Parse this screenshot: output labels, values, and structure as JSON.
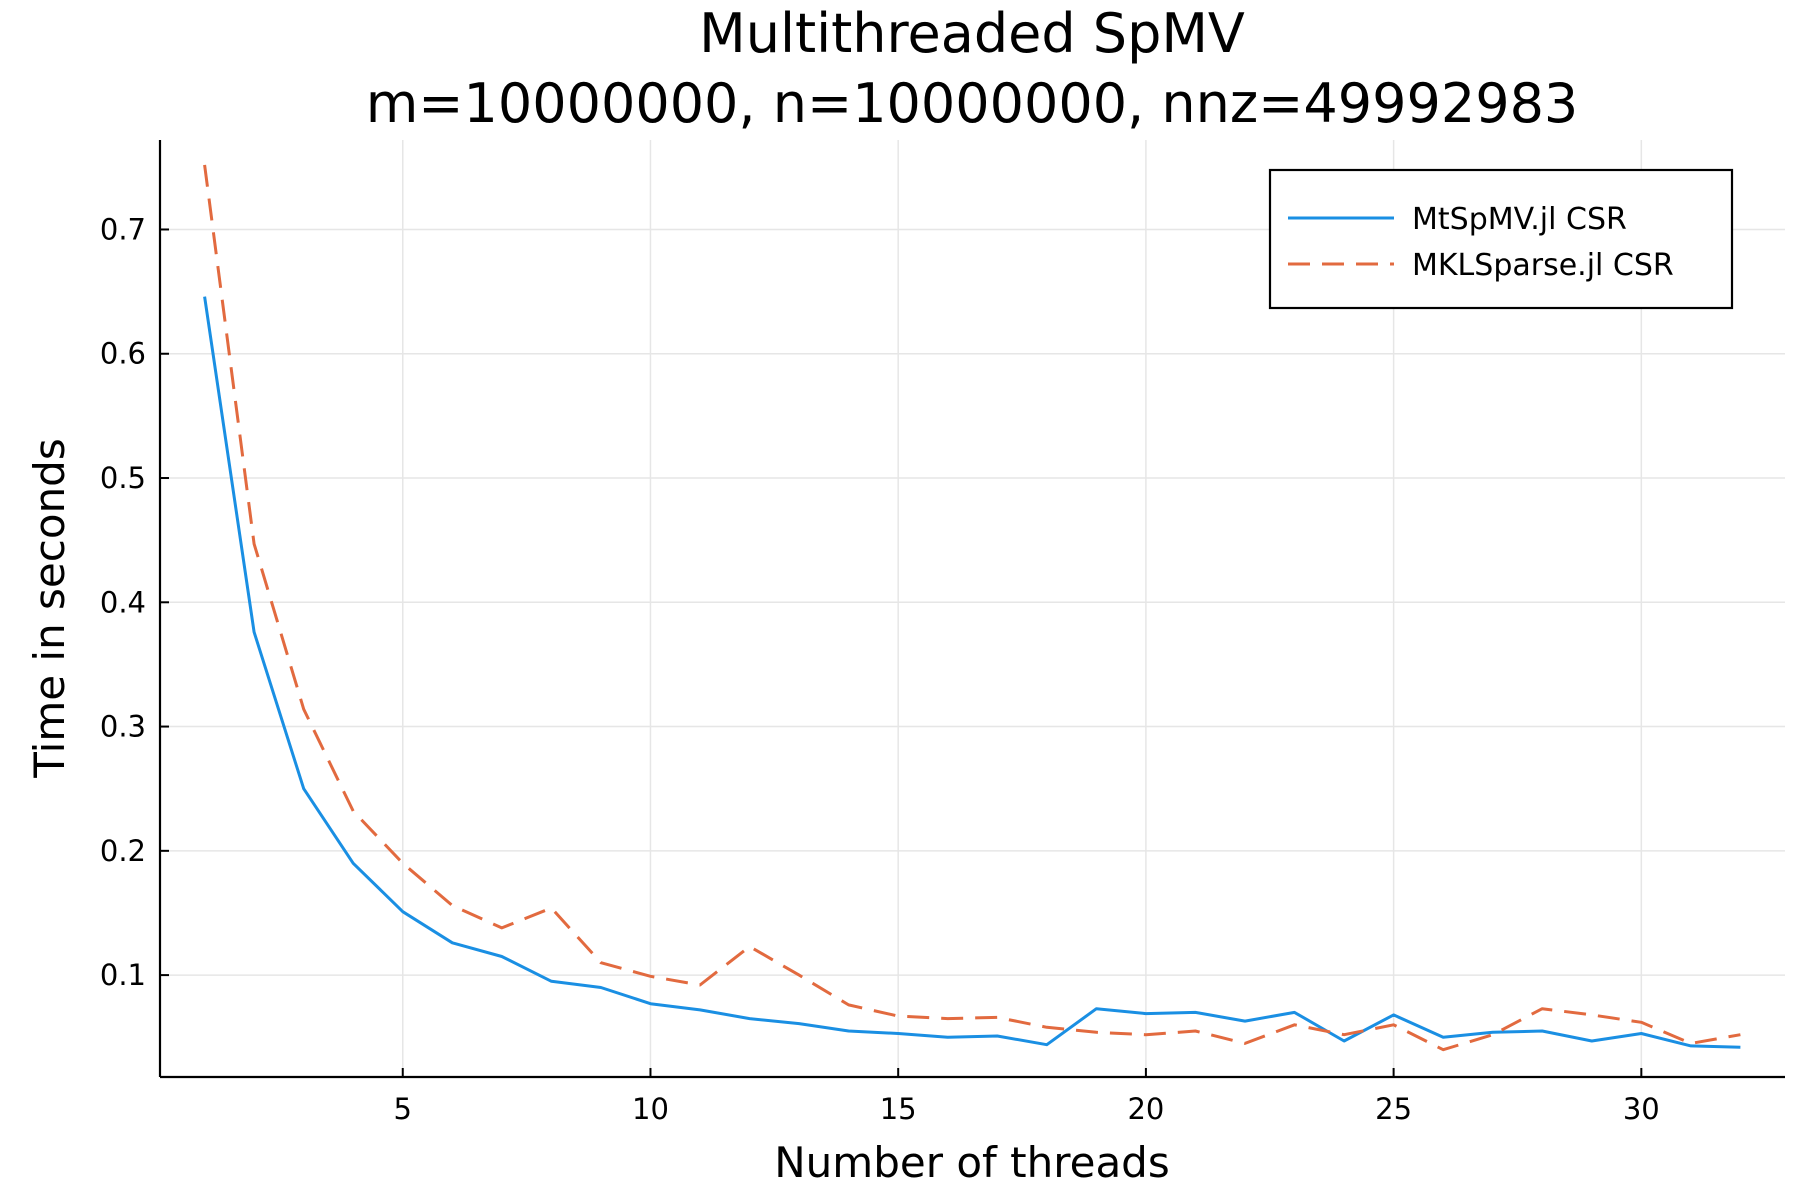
{
  "chart_data": {
    "type": "line",
    "title": "Multithreaded SpMV",
    "subtitle": "m=10000000, n=10000000, nnz=49992983",
    "xlabel": "Number of threads",
    "ylabel": "Time in seconds",
    "xlim": [
      0.1,
      32.9
    ],
    "ylim": [
      0.018,
      0.772
    ],
    "xticks": [
      5,
      10,
      15,
      20,
      25,
      30
    ],
    "yticks": [
      0.1,
      0.2,
      0.3,
      0.4,
      0.5,
      0.6,
      0.7
    ],
    "xtick_labels": [
      "5",
      "10",
      "15",
      "20",
      "25",
      "30"
    ],
    "ytick_labels": [
      "0.1",
      "0.2",
      "0.3",
      "0.4",
      "0.5",
      "0.6",
      "0.7"
    ],
    "grid": true,
    "legend_position": "top-right",
    "x": [
      1,
      2,
      3,
      4,
      5,
      6,
      7,
      8,
      9,
      10,
      11,
      12,
      13,
      14,
      15,
      16,
      17,
      18,
      19,
      20,
      21,
      22,
      23,
      24,
      25,
      26,
      27,
      28,
      29,
      30,
      31,
      32
    ],
    "series": [
      {
        "name": "MtSpMV.jl CSR",
        "color": "#1a8fe3",
        "dash": "solid",
        "values": [
          0.646,
          0.376,
          0.25,
          0.19,
          0.151,
          0.126,
          0.115,
          0.095,
          0.09,
          0.077,
          0.072,
          0.065,
          0.061,
          0.055,
          0.053,
          0.05,
          0.051,
          0.044,
          0.073,
          0.069,
          0.07,
          0.063,
          0.07,
          0.047,
          0.068,
          0.05,
          0.054,
          0.055,
          0.047,
          0.053,
          0.043,
          0.042
        ]
      },
      {
        "name": "MKLSparse.jl CSR",
        "color": "#e26a3f",
        "dash": "dashed",
        "values": [
          0.752,
          0.447,
          0.314,
          0.232,
          0.19,
          0.156,
          0.138,
          0.154,
          0.11,
          0.099,
          0.092,
          0.123,
          0.1,
          0.076,
          0.067,
          0.065,
          0.066,
          0.058,
          0.054,
          0.052,
          0.055,
          0.045,
          0.06,
          0.052,
          0.06,
          0.04,
          0.052,
          0.073,
          0.068,
          0.062,
          0.045,
          0.052
        ]
      }
    ]
  }
}
